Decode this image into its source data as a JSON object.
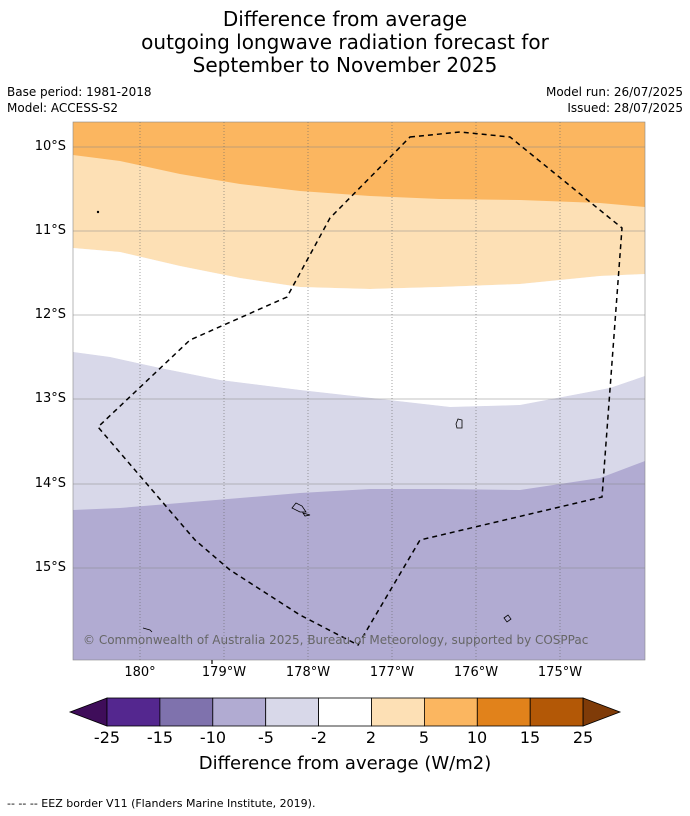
{
  "title": {
    "line1": "Difference from average",
    "line2": "outgoing longwave radiation forecast for",
    "line3": "September to November 2025"
  },
  "meta": {
    "base_period": "Base period: 1981-2018",
    "model": "Model: ACCESS-S2",
    "model_run": "Model run: 26/07/2025",
    "issued": "Issued: 28/07/2025"
  },
  "map": {
    "lat_labels": [
      "10°S",
      "11°S",
      "12°S",
      "13°S",
      "14°S",
      "15°S"
    ],
    "lon_labels": [
      "180°",
      "179°W",
      "178°W",
      "177°W",
      "176°W",
      "175°W"
    ],
    "copyright": "© Commonwealth of Australia 2025, Bureau of Meteorology, supported by COSPPac",
    "colors": {
      "orange_mid": "#fbb660",
      "orange_light": "#fde0b5",
      "white": "#ffffff",
      "purple_lightest": "#d8d8e9",
      "purple_light": "#b1abd2"
    }
  },
  "colorbar": {
    "title": "Difference from average (W/m2)",
    "ticks": [
      "-25",
      "-15",
      "-10",
      "-5",
      "-2",
      "2",
      "5",
      "10",
      "15",
      "25"
    ],
    "colors": [
      "#3f0d5a",
      "#54278f",
      "#7f72ad",
      "#b1abd2",
      "#d8d8e9",
      "#ffffff",
      "#fde0b5",
      "#fbb660",
      "#e1821b",
      "#b35806",
      "#7f3b08"
    ]
  },
  "footer": "-- -- -- EEZ border V11 (Flanders Marine Institute, 2019)."
}
